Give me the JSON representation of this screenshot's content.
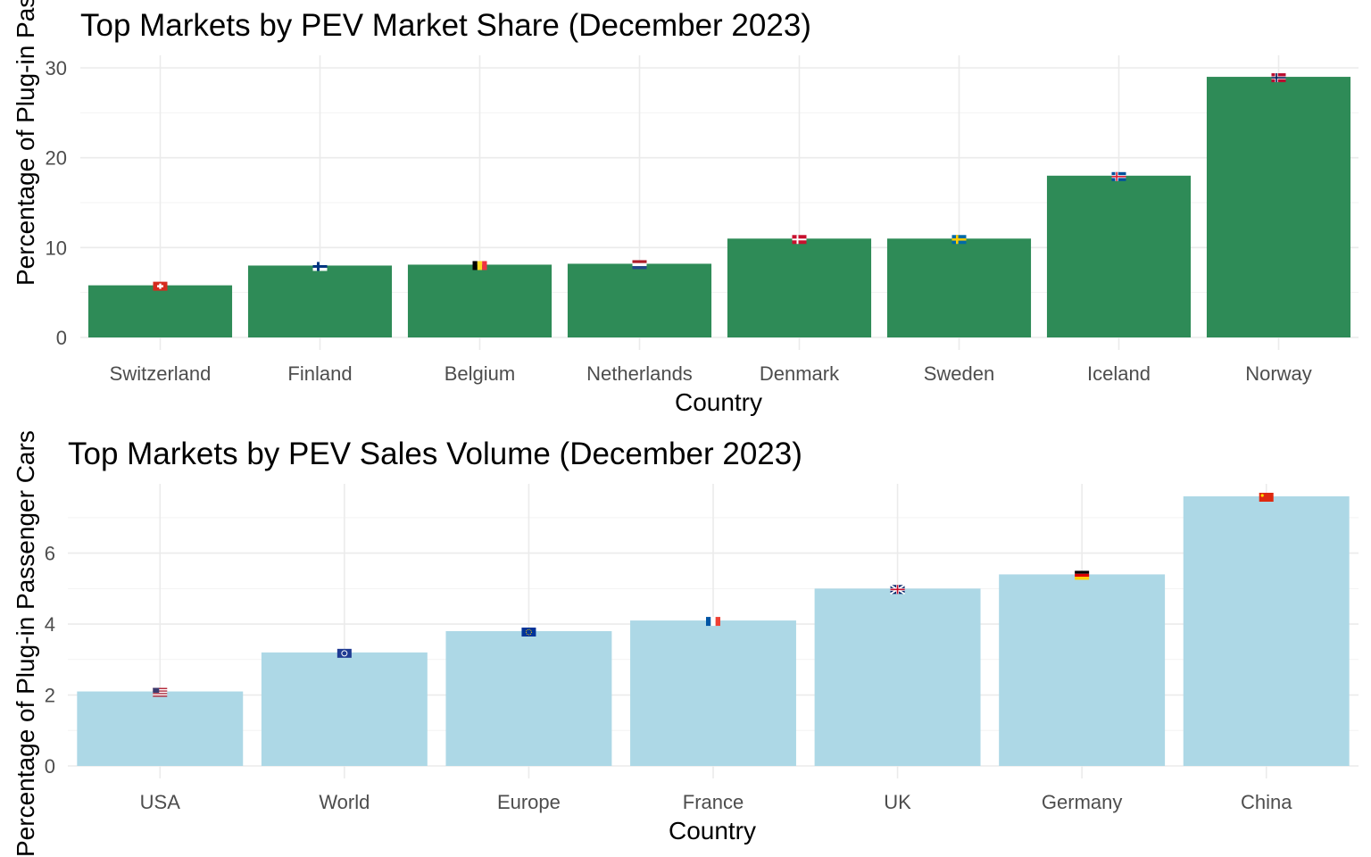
{
  "chart_data": [
    {
      "type": "bar",
      "title": "Top Markets by PEV Market Share (December 2023)",
      "xlabel": "Country",
      "ylabel": "Percentage of Plug-in Passenger Cars in",
      "categories": [
        "Switzerland",
        "Finland",
        "Belgium",
        "Netherlands",
        "Denmark",
        "Sweden",
        "Iceland",
        "Norway"
      ],
      "values": [
        5.8,
        8.0,
        8.1,
        8.2,
        11.0,
        11.0,
        18.0,
        29.0
      ],
      "flags": [
        "ch",
        "fi",
        "be",
        "nl",
        "dk",
        "se",
        "is",
        "no"
      ],
      "ylim": [
        0,
        30
      ],
      "yticks": [
        0,
        10,
        20,
        30
      ],
      "bar_color": "#2e8b57",
      "grid": true
    },
    {
      "type": "bar",
      "title": "Top Markets by PEV Sales Volume (December 2023)",
      "xlabel": "Country",
      "ylabel": "Percentage of Plug-in Passenger Cars",
      "categories": [
        "USA",
        "World",
        "Europe",
        "France",
        "UK",
        "Germany",
        "China"
      ],
      "values": [
        2.1,
        3.2,
        3.8,
        4.1,
        5.0,
        5.4,
        7.6
      ],
      "flags": [
        "us",
        "un",
        "eu",
        "fr",
        "gb",
        "de",
        "cn"
      ],
      "ylim": [
        0,
        7.6
      ],
      "yticks": [
        0,
        2,
        4,
        6
      ],
      "bar_color": "#add8e6",
      "grid": true
    }
  ]
}
